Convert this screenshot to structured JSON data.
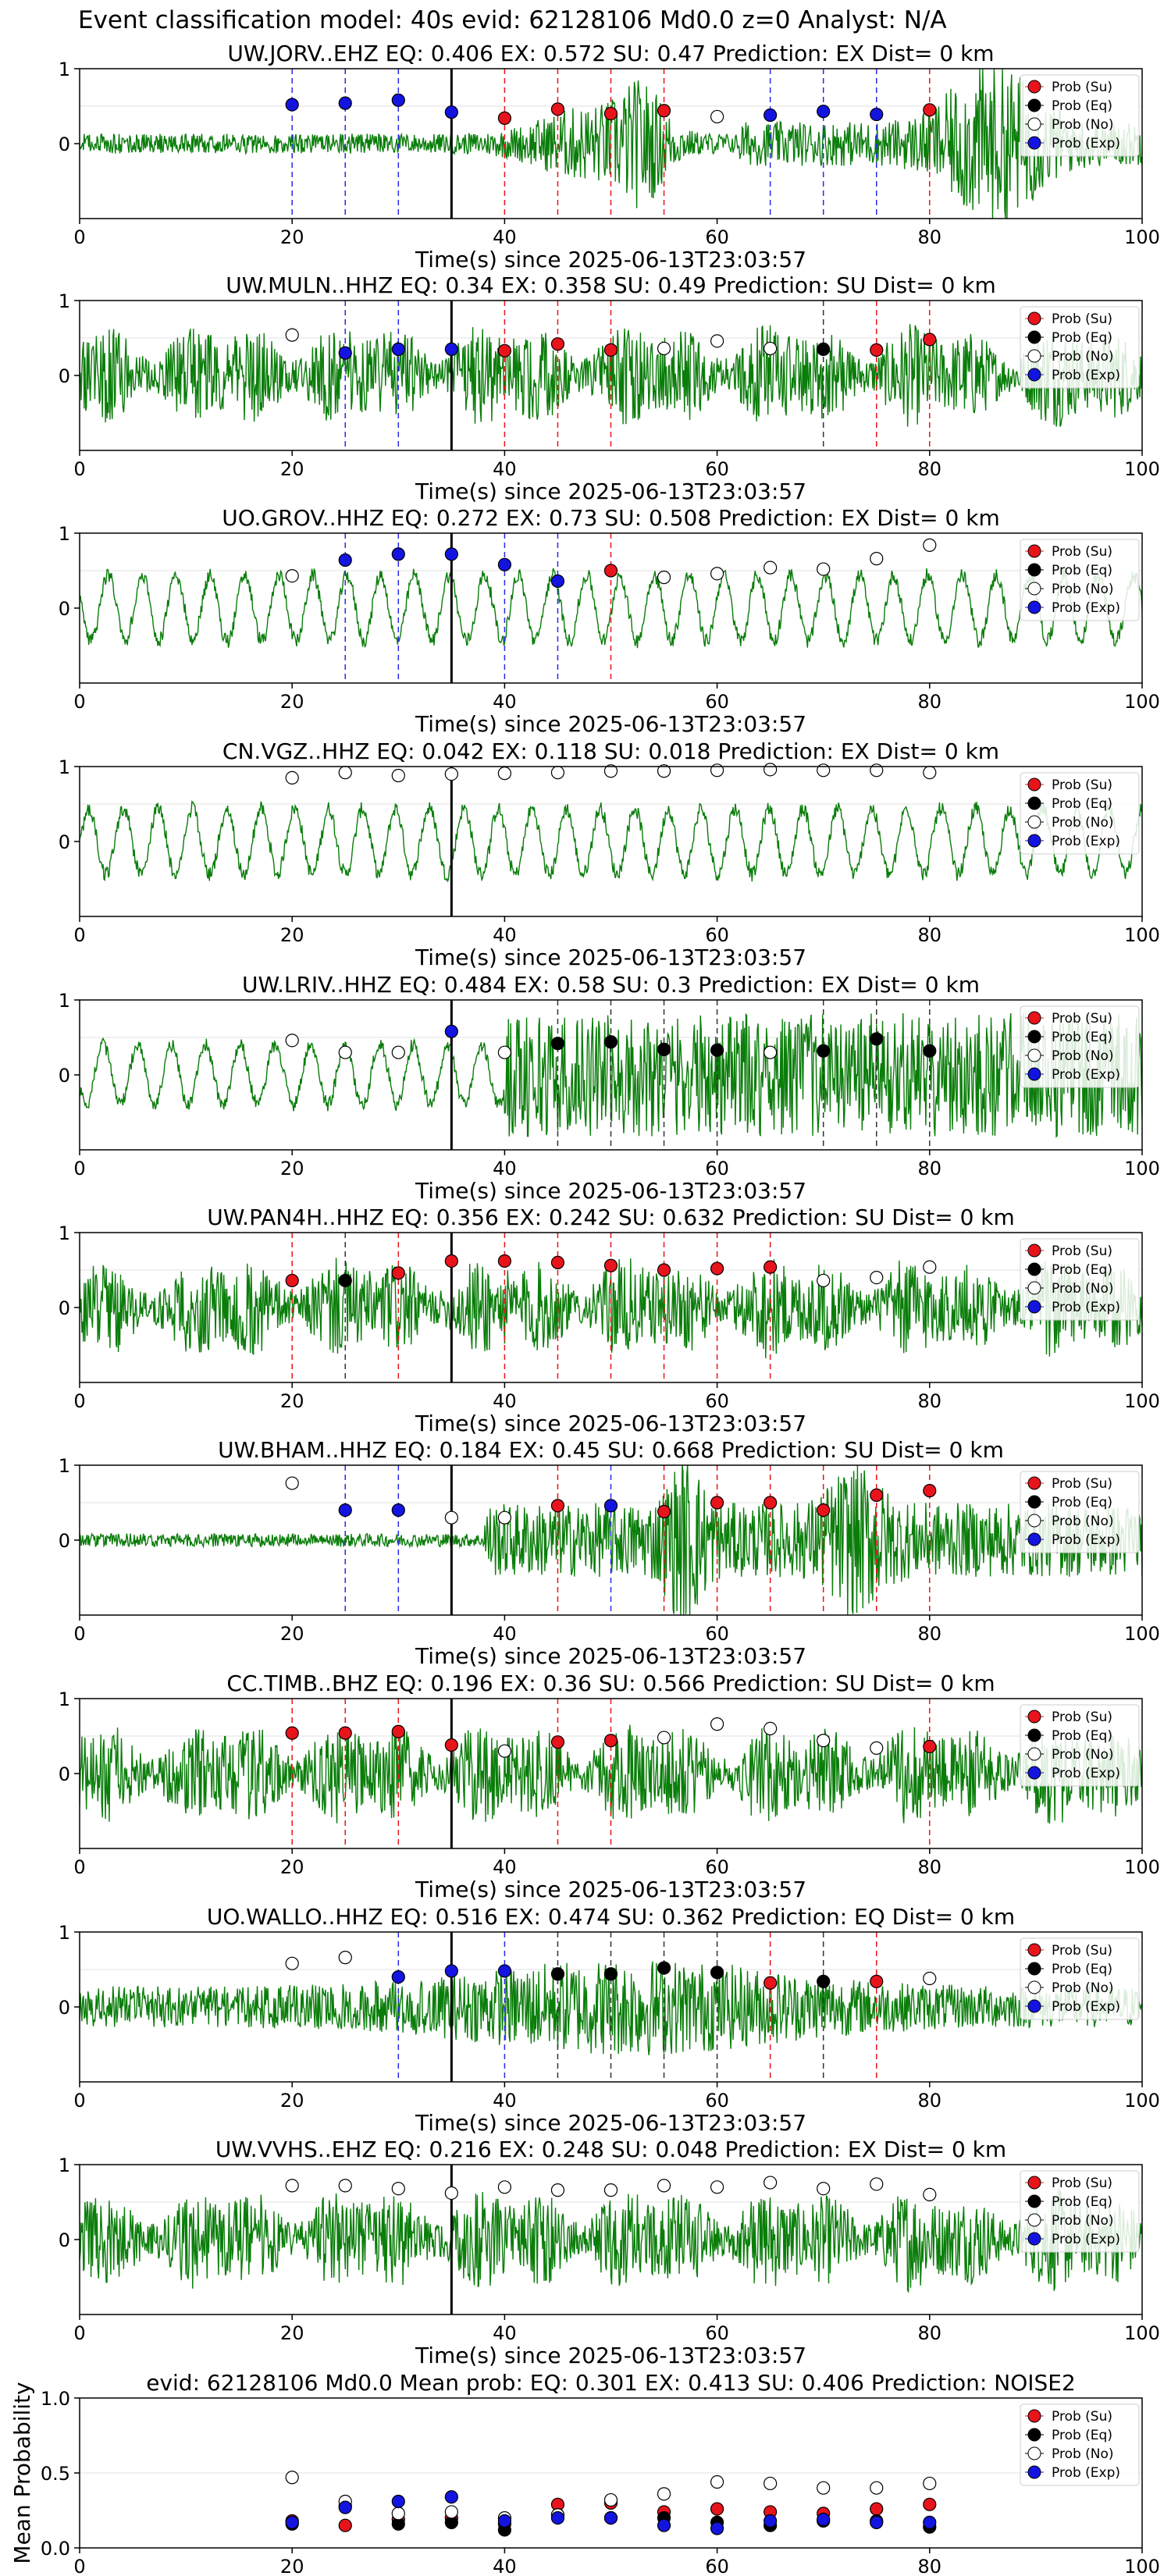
{
  "suptitle": "Event classification model: 40s evid: 62128106 Md0.0 z=0 Analyst: N/A",
  "legend_labels": [
    "Prob (Su)",
    "Prob (Eq)",
    "Prob (No)",
    "Prob (Exp)"
  ],
  "colors": {
    "su": "#e8141c",
    "eq": "#000000",
    "no": "#ffffff",
    "exp": "#1414e0",
    "waveform": "#0a7d0a",
    "line_su": "#e8141c",
    "line_eq": "#333333",
    "line_exp": "#2a2ae8"
  },
  "chart_data": [
    {
      "type": "line",
      "title": "UW.JORV..EHZ   EQ: 0.406  EX: 0.572  SU: 0.47   Prediction: EX    Dist= 0 km",
      "xlabel": "Time(s) since 2025-06-13T23:03:57",
      "xlim": [
        0,
        100
      ],
      "ylim": [
        -1,
        1
      ],
      "xticks": [
        "0",
        "20",
        "40",
        "60",
        "80",
        "100"
      ],
      "yticks": [
        "1",
        "0"
      ],
      "event_time": 35,
      "windows": [
        20,
        25,
        30,
        35,
        40,
        45,
        50,
        55,
        60,
        65,
        70,
        75,
        80
      ],
      "winner": [
        "exp",
        "exp",
        "exp",
        "exp",
        "su",
        "su",
        "su",
        "su",
        "no",
        "exp",
        "exp",
        "exp",
        "su"
      ],
      "winner_prob": [
        0.52,
        0.54,
        0.58,
        0.42,
        0.34,
        0.46,
        0.4,
        0.44,
        0.36,
        0.38,
        0.43,
        0.39,
        0.45
      ],
      "waveform_profile": "bursts-late"
    },
    {
      "type": "line",
      "title": "UW.MULN..HHZ   EQ: 0.34  EX: 0.358  SU: 0.49   Prediction: SU    Dist= 0 km",
      "xlabel": "Time(s) since 2025-06-13T23:03:57",
      "xlim": [
        0,
        100
      ],
      "ylim": [
        -1,
        1
      ],
      "xticks": [
        "0",
        "20",
        "40",
        "60",
        "80",
        "100"
      ],
      "yticks": [
        "1",
        "0"
      ],
      "event_time": 35,
      "windows": [
        20,
        25,
        30,
        35,
        40,
        45,
        50,
        55,
        60,
        65,
        70,
        75,
        80
      ],
      "winner": [
        "no",
        "exp",
        "exp",
        "exp",
        "su",
        "su",
        "su",
        "no",
        "no",
        "no",
        "eq",
        "su",
        "su"
      ],
      "winner_prob": [
        0.54,
        0.3,
        0.35,
        0.35,
        0.33,
        0.42,
        0.34,
        0.36,
        0.46,
        0.36,
        0.35,
        0.34,
        0.48
      ],
      "waveform_profile": "noisy"
    },
    {
      "type": "line",
      "title": "UO.GROV..HHZ   EQ: 0.272  EX: 0.73  SU: 0.508   Prediction: EX    Dist= 0 km",
      "xlabel": "Time(s) since 2025-06-13T23:03:57",
      "xlim": [
        0,
        100
      ],
      "ylim": [
        -1,
        1
      ],
      "xticks": [
        "0",
        "20",
        "40",
        "60",
        "80",
        "100"
      ],
      "yticks": [
        "1",
        "0"
      ],
      "event_time": 35,
      "windows": [
        20,
        25,
        30,
        35,
        40,
        45,
        50,
        55,
        60,
        65,
        70,
        75,
        80
      ],
      "winner": [
        "no",
        "exp",
        "exp",
        "exp",
        "exp",
        "exp",
        "su",
        "no",
        "no",
        "no",
        "no",
        "no",
        "no"
      ],
      "winner_prob": [
        0.43,
        0.64,
        0.72,
        0.72,
        0.58,
        0.36,
        0.5,
        0.41,
        0.46,
        0.54,
        0.52,
        0.66,
        0.84
      ],
      "waveform_profile": "smooth"
    },
    {
      "type": "line",
      "title": "CN.VGZ..HHZ   EQ: 0.042  EX: 0.118  SU: 0.018   Prediction: EX    Dist= 0 km",
      "xlabel": "Time(s) since 2025-06-13T23:03:57",
      "xlim": [
        0,
        100
      ],
      "ylim": [
        -1,
        1
      ],
      "xticks": [
        "0",
        "20",
        "40",
        "60",
        "80",
        "100"
      ],
      "yticks": [
        "1",
        "0"
      ],
      "event_time": 35,
      "windows": [
        20,
        25,
        30,
        35,
        40,
        45,
        50,
        55,
        60,
        65,
        70,
        75,
        80
      ],
      "winner": [
        "no",
        "no",
        "no",
        "no",
        "no",
        "no",
        "no",
        "no",
        "no",
        "no",
        "no",
        "no",
        "no"
      ],
      "winner_prob": [
        0.85,
        0.92,
        0.88,
        0.9,
        0.91,
        0.92,
        0.94,
        0.94,
        0.95,
        0.96,
        0.95,
        0.95,
        0.92
      ],
      "waveform_profile": "smooth"
    },
    {
      "type": "line",
      "title": "UW.LRIV..HHZ   EQ: 0.484  EX: 0.58  SU: 0.3   Prediction: EX    Dist= 0 km",
      "xlabel": "Time(s) since 2025-06-13T23:03:57",
      "xlim": [
        0,
        100
      ],
      "ylim": [
        -1,
        1
      ],
      "xticks": [
        "0",
        "20",
        "40",
        "60",
        "80",
        "100"
      ],
      "yticks": [
        "1",
        "0"
      ],
      "event_time": 35,
      "windows": [
        20,
        25,
        30,
        35,
        40,
        45,
        50,
        55,
        60,
        65,
        70,
        75,
        80
      ],
      "winner": [
        "no",
        "no",
        "no",
        "exp",
        "no",
        "eq",
        "eq",
        "eq",
        "eq",
        "no",
        "eq",
        "eq",
        "eq"
      ],
      "winner_prob": [
        0.46,
        0.3,
        0.3,
        0.58,
        0.3,
        0.42,
        0.44,
        0.34,
        0.33,
        0.3,
        0.32,
        0.48,
        0.32
      ],
      "waveform_profile": "smooth-then-noisy"
    },
    {
      "type": "line",
      "title": "UW.PAN4H..HHZ   EQ: 0.356  EX: 0.242  SU: 0.632   Prediction: SU    Dist= 0 km",
      "xlabel": "Time(s) since 2025-06-13T23:03:57",
      "xlim": [
        0,
        100
      ],
      "ylim": [
        -1,
        1
      ],
      "xticks": [
        "0",
        "20",
        "40",
        "60",
        "80",
        "100"
      ],
      "yticks": [
        "1",
        "0"
      ],
      "event_time": 35,
      "windows": [
        20,
        25,
        30,
        35,
        40,
        45,
        50,
        55,
        60,
        65,
        70,
        75,
        80
      ],
      "winner": [
        "su",
        "eq",
        "su",
        "su",
        "su",
        "su",
        "su",
        "su",
        "su",
        "su",
        "no",
        "no",
        "no"
      ],
      "winner_prob": [
        0.36,
        0.36,
        0.46,
        0.62,
        0.62,
        0.6,
        0.56,
        0.5,
        0.52,
        0.54,
        0.36,
        0.4,
        0.54
      ],
      "waveform_profile": "noisy"
    },
    {
      "type": "line",
      "title": "UW.BHAM..HHZ   EQ: 0.184  EX: 0.45  SU: 0.668   Prediction: SU    Dist= 0 km",
      "xlabel": "Time(s) since 2025-06-13T23:03:57",
      "xlim": [
        0,
        100
      ],
      "ylim": [
        -1,
        1
      ],
      "xticks": [
        "0",
        "20",
        "40",
        "60",
        "80",
        "100"
      ],
      "yticks": [
        "1",
        "0"
      ],
      "event_time": 35,
      "windows": [
        20,
        25,
        30,
        35,
        40,
        45,
        50,
        55,
        60,
        65,
        70,
        75,
        80
      ],
      "winner": [
        "no",
        "exp",
        "exp",
        "no",
        "no",
        "su",
        "exp",
        "su",
        "su",
        "su",
        "su",
        "su",
        "su"
      ],
      "winner_prob": [
        0.76,
        0.4,
        0.4,
        0.3,
        0.3,
        0.46,
        0.46,
        0.38,
        0.5,
        0.5,
        0.4,
        0.6,
        0.66
      ],
      "waveform_profile": "quiet-then-bursts"
    },
    {
      "type": "line",
      "title": "CC.TIMB..BHZ   EQ: 0.196  EX: 0.36  SU: 0.566   Prediction: SU    Dist= 0 km",
      "xlabel": "Time(s) since 2025-06-13T23:03:57",
      "xlim": [
        0,
        100
      ],
      "ylim": [
        -1,
        1
      ],
      "xticks": [
        "0",
        "20",
        "40",
        "60",
        "80",
        "100"
      ],
      "yticks": [
        "1",
        "0"
      ],
      "event_time": 35,
      "windows": [
        20,
        25,
        30,
        35,
        40,
        45,
        50,
        55,
        60,
        65,
        70,
        75,
        80
      ],
      "winner": [
        "su",
        "su",
        "su",
        "su",
        "no",
        "su",
        "su",
        "no",
        "no",
        "no",
        "no",
        "no",
        "su"
      ],
      "winner_prob": [
        0.54,
        0.54,
        0.56,
        0.38,
        0.3,
        0.42,
        0.44,
        0.48,
        0.66,
        0.6,
        0.44,
        0.34,
        0.36
      ],
      "waveform_profile": "noisy"
    },
    {
      "type": "line",
      "title": "UO.WALLO..HHZ   EQ: 0.516  EX: 0.474  SU: 0.362   Prediction: EQ    Dist= 0 km",
      "xlabel": "Time(s) since 2025-06-13T23:03:57",
      "xlim": [
        0,
        100
      ],
      "ylim": [
        -1,
        1
      ],
      "xticks": [
        "0",
        "20",
        "40",
        "60",
        "80",
        "100"
      ],
      "yticks": [
        "1",
        "0"
      ],
      "event_time": 35,
      "windows": [
        20,
        25,
        30,
        35,
        40,
        45,
        50,
        55,
        60,
        65,
        70,
        75,
        80
      ],
      "winner": [
        "no",
        "no",
        "exp",
        "exp",
        "exp",
        "eq",
        "eq",
        "eq",
        "eq",
        "su",
        "eq",
        "su",
        "no"
      ],
      "winner_prob": [
        0.58,
        0.66,
        0.4,
        0.48,
        0.48,
        0.44,
        0.44,
        0.52,
        0.46,
        0.32,
        0.34,
        0.34,
        0.38
      ],
      "waveform_profile": "noisy-mid"
    },
    {
      "type": "line",
      "title": "UW.VVHS..EHZ   EQ: 0.216  EX: 0.248  SU: 0.048   Prediction: EX    Dist= 0 km",
      "xlabel": "Time(s) since 2025-06-13T23:03:57",
      "xlim": [
        0,
        100
      ],
      "ylim": [
        -1,
        1
      ],
      "xticks": [
        "0",
        "20",
        "40",
        "60",
        "80",
        "100"
      ],
      "yticks": [
        "1",
        "0"
      ],
      "event_time": 35,
      "windows": [
        20,
        25,
        30,
        35,
        40,
        45,
        50,
        55,
        60,
        65,
        70,
        75,
        80
      ],
      "winner": [
        "no",
        "no",
        "no",
        "no",
        "no",
        "no",
        "no",
        "no",
        "no",
        "no",
        "no",
        "no",
        "no"
      ],
      "winner_prob": [
        0.72,
        0.72,
        0.68,
        0.62,
        0.7,
        0.66,
        0.66,
        0.72,
        0.7,
        0.76,
        0.68,
        0.74,
        0.6
      ],
      "waveform_profile": "noisy"
    },
    {
      "type": "scatter",
      "title": "evid: 62128106  Md0.0   Mean prob:   EQ: 0.301  EX: 0.413  SU: 0.406   Prediction: NOISE2",
      "ylabel": "Mean Probability",
      "xlim": [
        0,
        100
      ],
      "ylim": [
        0,
        1
      ],
      "xticks": [
        "0",
        "20",
        "40",
        "60",
        "80",
        "100"
      ],
      "yticks": [
        "0.0",
        "0.5",
        "1.0"
      ],
      "x": [
        20,
        25,
        30,
        35,
        40,
        45,
        50,
        55,
        60,
        65,
        70,
        75,
        80
      ],
      "series": [
        {
          "name": "Prob (Su)",
          "key": "su",
          "values": [
            0.18,
            0.15,
            0.19,
            0.2,
            0.16,
            0.29,
            0.3,
            0.24,
            0.26,
            0.24,
            0.23,
            0.26,
            0.29
          ]
        },
        {
          "name": "Prob (Eq)",
          "key": "eq",
          "values": [
            0.16,
            0.28,
            0.16,
            0.17,
            0.12,
            0.22,
            0.2,
            0.2,
            0.17,
            0.15,
            0.18,
            0.18,
            0.14
          ]
        },
        {
          "name": "Prob (No)",
          "key": "no",
          "values": [
            0.47,
            0.31,
            0.23,
            0.24,
            0.2,
            0.22,
            0.32,
            0.36,
            0.44,
            0.43,
            0.4,
            0.4,
            0.43
          ]
        },
        {
          "name": "Prob (Exp)",
          "key": "exp",
          "values": [
            0.17,
            0.27,
            0.31,
            0.34,
            0.18,
            0.2,
            0.2,
            0.15,
            0.13,
            0.18,
            0.19,
            0.17,
            0.17
          ]
        }
      ]
    }
  ]
}
